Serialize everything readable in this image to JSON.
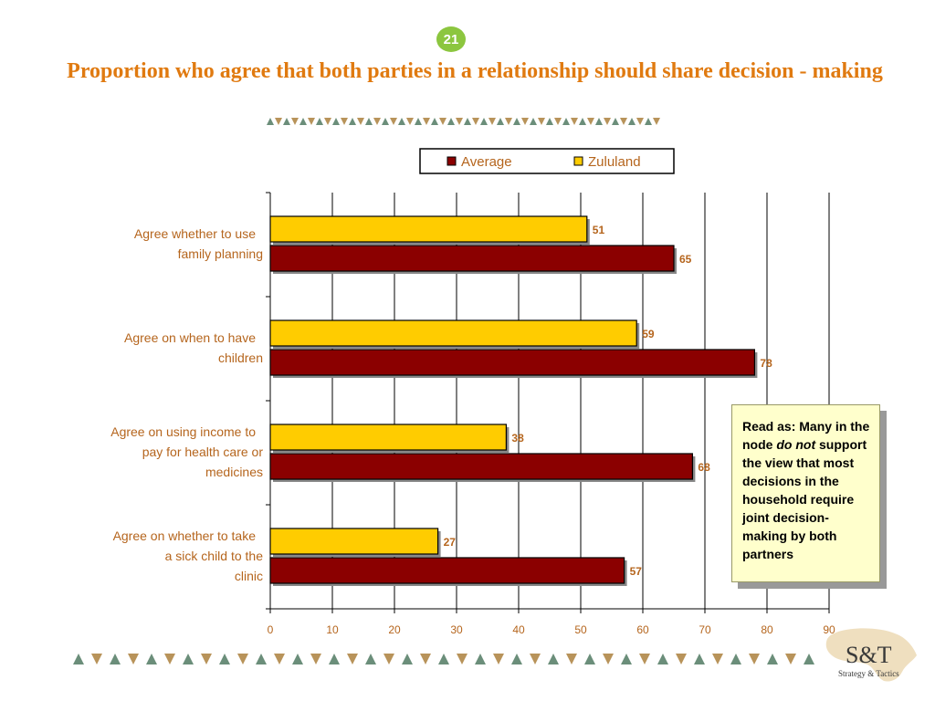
{
  "page_number": "21",
  "note": {
    "line1": "Read as: Many in the node ",
    "emphasis": "do not",
    "line2": " support the view that most decisions in the household require joint decision-making by both partners"
  },
  "logo": {
    "main": "S&T",
    "sub": "Strategy & Tactics"
  },
  "colors": {
    "average": "#8b0000",
    "zululand": "#ffcc00",
    "title": "#e07a10"
  },
  "chart_data": {
    "type": "bar",
    "orientation": "horizontal",
    "title": "Proportion who agree that both parties in a relationship should share decision - making",
    "categories": [
      "Agree whether to use family planning",
      "Agree on when to have children",
      "Agree on using income to pay for health care or medicines",
      "Agree on whether to take a sick child to the clinic"
    ],
    "series": [
      {
        "name": "Zululand",
        "values": [
          51,
          59,
          38,
          27
        ]
      },
      {
        "name": "Average",
        "values": [
          65,
          78,
          68,
          57
        ]
      }
    ],
    "legend_order": [
      "Average",
      "Zululand"
    ],
    "legend_position": "top",
    "xlim": [
      0,
      90
    ],
    "xticks": [
      0,
      10,
      20,
      30,
      40,
      50,
      60,
      70,
      80,
      90
    ],
    "grid": true
  }
}
